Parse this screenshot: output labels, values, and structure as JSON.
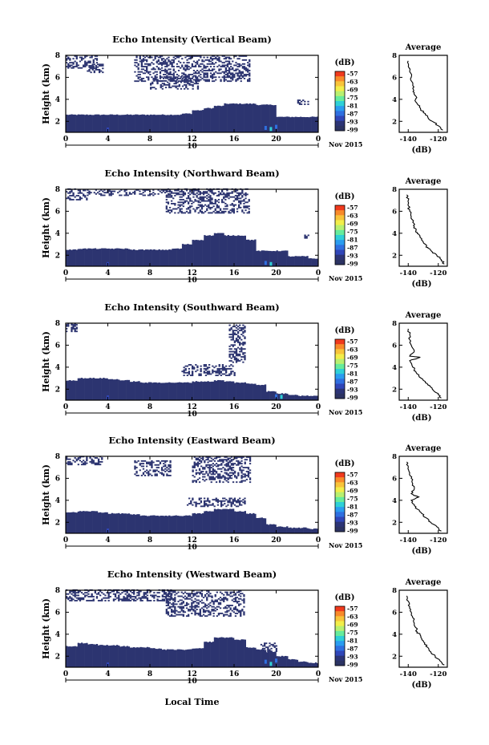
{
  "figure": {
    "date_label": "Nov 2015",
    "xlabel": "Local Time",
    "colorbar_unit": "(dB)",
    "colorbar_ticks": [
      "-57",
      "-63",
      "-69",
      "-75",
      "-81",
      "-87",
      "-93",
      "-99"
    ],
    "colorbar_colors": [
      "#f03a1d",
      "#f88a2a",
      "#f8c43a",
      "#f2ee4a",
      "#b8f070",
      "#66ec9c",
      "#2ed0d8",
      "#2a9cf0",
      "#2f6fe0",
      "#3046b8",
      "#2c3476",
      "#2c3362"
    ],
    "main_xticks": [
      "0",
      "4",
      "8",
      "12",
      "16",
      "20",
      "0"
    ],
    "main_xlim": [
      0,
      24
    ],
    "main_yticks": [
      "2",
      "4",
      "6",
      "8"
    ],
    "main_ylim": [
      1,
      8
    ],
    "main_ylabel": "Height (km)",
    "day_marker": "10",
    "profile_title": "Average",
    "profile_xlabel": "(dB)",
    "profile_xticks": [
      "-140",
      "-120"
    ],
    "profile_xlim": [
      -146,
      -114
    ],
    "profile_yticks": [
      "2",
      "4",
      "6",
      "8"
    ],
    "profile_ylim": [
      1,
      8
    ],
    "echo_color": "#2c3470"
  },
  "chart_data": [
    {
      "type": "heatmap",
      "title": "Echo Intensity (Vertical Beam)",
      "xlabel": "Local Time",
      "ylabel": "Height (km)",
      "lower_layer": {
        "start_hour": 0,
        "end_hour": 24,
        "top_km": [
          2.6,
          2.6,
          2.6,
          2.6,
          2.6,
          2.6,
          2.6,
          2.6,
          2.6,
          2.6,
          2.6,
          2.7,
          3.0,
          3.2,
          3.4,
          3.6,
          3.6,
          3.6,
          3.5,
          3.5,
          2.4,
          2.4,
          2.4,
          2.4,
          1.5
        ]
      },
      "upper_echo": [
        {
          "t0": 0.0,
          "t1": 3.0,
          "h0": 6.8,
          "h1": 8.0
        },
        {
          "t0": 2.0,
          "t1": 3.5,
          "h0": 6.4,
          "h1": 7.2
        },
        {
          "t0": 6.5,
          "t1": 17.5,
          "h0": 5.6,
          "h1": 8.0
        },
        {
          "t0": 8.0,
          "t1": 12.5,
          "h0": 4.9,
          "h1": 6.0
        },
        {
          "t0": 22.0,
          "t1": 23.0,
          "h0": 3.5,
          "h1": 4.0
        }
      ],
      "strong_echo": [
        {
          "t": 4.0,
          "h": 1.25,
          "level": "-93"
        },
        {
          "t": 19.0,
          "h": 1.4,
          "level": "-87"
        },
        {
          "t": 19.5,
          "h": 1.3,
          "level": "-81"
        },
        {
          "t": 20.0,
          "h": 1.5,
          "level": "-87"
        }
      ],
      "profile": {
        "title": "Average",
        "xlabel": "(dB)",
        "x": [
          -140,
          -140,
          -139,
          -138,
          -137,
          -137,
          -136,
          -135,
          -135,
          -134,
          -132,
          -130,
          -127,
          -124,
          -120,
          -117
        ],
        "y": [
          7.5,
          7.0,
          6.5,
          6.0,
          5.5,
          5.0,
          4.6,
          4.3,
          4.0,
          3.6,
          3.2,
          2.8,
          2.4,
          2.0,
          1.6,
          1.2
        ]
      }
    },
    {
      "type": "heatmap",
      "title": "Echo Intensity (Northward Beam)",
      "xlabel": "Local Time",
      "ylabel": "Height (km)",
      "lower_layer": {
        "start_hour": 0,
        "end_hour": 24,
        "top_km": [
          2.5,
          2.6,
          2.6,
          2.6,
          2.6,
          2.6,
          2.5,
          2.5,
          2.5,
          2.5,
          2.6,
          3.0,
          3.4,
          3.8,
          4.0,
          3.8,
          3.8,
          3.4,
          2.4,
          2.4,
          2.4,
          1.9,
          1.9,
          1.7,
          1.5
        ]
      },
      "upper_echo": [
        {
          "t0": 0.0,
          "t1": 2.0,
          "h0": 7.0,
          "h1": 8.0
        },
        {
          "t0": 2.0,
          "t1": 10.0,
          "h0": 7.4,
          "h1": 8.0
        },
        {
          "t0": 9.5,
          "t1": 17.5,
          "h0": 5.8,
          "h1": 8.0
        },
        {
          "t0": 22.5,
          "t1": 23.0,
          "h0": 3.4,
          "h1": 3.8
        }
      ],
      "strong_echo": [
        {
          "t": 4.0,
          "h": 1.2,
          "level": "-93"
        },
        {
          "t": 19.0,
          "h": 1.3,
          "level": "-87"
        },
        {
          "t": 19.5,
          "h": 1.2,
          "level": "-81"
        }
      ],
      "profile": {
        "title": "Average",
        "xlabel": "(dB)",
        "x": [
          -141,
          -140,
          -140,
          -139,
          -138,
          -137,
          -136,
          -135,
          -133,
          -132,
          -130,
          -128,
          -126,
          -124,
          -121,
          -118,
          -116
        ],
        "y": [
          7.5,
          7.0,
          6.5,
          6.0,
          5.5,
          5.0,
          4.6,
          4.2,
          3.9,
          3.6,
          3.2,
          2.8,
          2.6,
          2.3,
          2.0,
          1.6,
          1.2
        ]
      }
    },
    {
      "type": "heatmap",
      "title": "Echo Intensity (Southward Beam)",
      "xlabel": "Local Time",
      "ylabel": "Height (km)",
      "lower_layer": {
        "start_hour": 0,
        "end_hour": 24,
        "top_km": [
          2.8,
          3.0,
          3.0,
          3.0,
          2.9,
          2.8,
          2.7,
          2.6,
          2.6,
          2.6,
          2.6,
          2.6,
          2.7,
          2.7,
          2.8,
          2.7,
          2.6,
          2.5,
          2.4,
          1.8,
          1.6,
          1.5,
          1.4,
          1.4,
          1.3
        ]
      },
      "upper_echo": [
        {
          "t0": 0.0,
          "t1": 1.0,
          "h0": 7.2,
          "h1": 8.0
        },
        {
          "t0": 11.0,
          "t1": 16.0,
          "h0": 3.2,
          "h1": 4.2
        },
        {
          "t0": 15.5,
          "t1": 17.0,
          "h0": 4.4,
          "h1": 8.0
        }
      ],
      "strong_echo": [
        {
          "t": 4.0,
          "h": 1.25,
          "level": "-93"
        },
        {
          "t": 20.0,
          "h": 1.35,
          "level": "-87"
        },
        {
          "t": 20.5,
          "h": 1.3,
          "level": "-81"
        }
      ],
      "profile": {
        "title": "Average",
        "xlabel": "(dB)",
        "x": [
          -140,
          -139,
          -139,
          -138,
          -136,
          -139,
          -132,
          -139,
          -137,
          -135,
          -133,
          -130,
          -127,
          -124,
          -120,
          -118
        ],
        "y": [
          7.5,
          7.0,
          6.5,
          6.0,
          5.5,
          5.0,
          4.9,
          4.6,
          4.0,
          3.6,
          3.2,
          2.8,
          2.4,
          2.0,
          1.6,
          1.2
        ]
      }
    },
    {
      "type": "heatmap",
      "title": "Echo Intensity (Eastward Beam)",
      "xlabel": "Local Time",
      "ylabel": "Height (km)",
      "lower_layer": {
        "start_hour": 0,
        "end_hour": 24,
        "top_km": [
          2.9,
          3.0,
          3.0,
          2.9,
          2.8,
          2.8,
          2.7,
          2.6,
          2.6,
          2.6,
          2.6,
          2.6,
          2.8,
          3.0,
          3.2,
          3.2,
          3.0,
          2.8,
          2.4,
          1.8,
          1.6,
          1.5,
          1.5,
          1.4,
          1.3
        ]
      },
      "upper_echo": [
        {
          "t0": 0.0,
          "t1": 3.5,
          "h0": 7.2,
          "h1": 8.0
        },
        {
          "t0": 6.5,
          "t1": 10.0,
          "h0": 6.2,
          "h1": 7.6
        },
        {
          "t0": 12.0,
          "t1": 17.5,
          "h0": 5.6,
          "h1": 8.0
        },
        {
          "t0": 11.5,
          "t1": 17.0,
          "h0": 3.4,
          "h1": 4.2
        }
      ],
      "strong_echo": [
        {
          "t": 4.0,
          "h": 1.25,
          "level": "-93"
        }
      ],
      "profile": {
        "title": "Average",
        "xlabel": "(dB)",
        "x": [
          -141,
          -140,
          -139,
          -138,
          -137,
          -136,
          -138,
          -133,
          -138,
          -136,
          -134,
          -131,
          -128,
          -125,
          -121,
          -118
        ],
        "y": [
          7.5,
          7.0,
          6.5,
          6.0,
          5.5,
          5.0,
          4.6,
          4.3,
          4.0,
          3.6,
          3.2,
          2.8,
          2.4,
          2.0,
          1.6,
          1.2
        ]
      }
    },
    {
      "type": "heatmap",
      "title": "Echo Intensity (Westward Beam)",
      "xlabel": "Local Time",
      "ylabel": "Height (km)",
      "lower_layer": {
        "start_hour": 0,
        "end_hour": 24,
        "top_km": [
          2.9,
          3.2,
          3.1,
          3.0,
          3.0,
          2.9,
          2.8,
          2.8,
          2.7,
          2.6,
          2.6,
          2.6,
          2.7,
          3.3,
          3.7,
          3.7,
          3.5,
          2.8,
          2.6,
          2.4,
          2.0,
          1.7,
          1.5,
          1.4,
          1.3
        ]
      },
      "upper_echo": [
        {
          "t0": 0.0,
          "t1": 10.0,
          "h0": 7.0,
          "h1": 8.0
        },
        {
          "t0": 9.5,
          "t1": 17.0,
          "h0": 5.6,
          "h1": 8.0
        },
        {
          "t0": 18.5,
          "t1": 20.0,
          "h0": 2.4,
          "h1": 3.2
        }
      ],
      "strong_echo": [
        {
          "t": 4.0,
          "h": 1.25,
          "level": "-93"
        },
        {
          "t": 19.0,
          "h": 1.5,
          "level": "-87"
        },
        {
          "t": 19.5,
          "h": 1.3,
          "level": "-81"
        },
        {
          "t": 20.0,
          "h": 1.6,
          "level": "-87"
        }
      ],
      "profile": {
        "title": "Average",
        "xlabel": "(dB)",
        "x": [
          -141,
          -140,
          -139,
          -138,
          -137,
          -136,
          -135,
          -134,
          -132,
          -131,
          -129,
          -127,
          -125,
          -122,
          -119,
          -116
        ],
        "y": [
          7.5,
          7.0,
          6.5,
          6.0,
          5.5,
          5.0,
          4.6,
          4.2,
          3.9,
          3.6,
          3.2,
          2.8,
          2.4,
          2.0,
          1.6,
          1.2
        ]
      }
    }
  ]
}
